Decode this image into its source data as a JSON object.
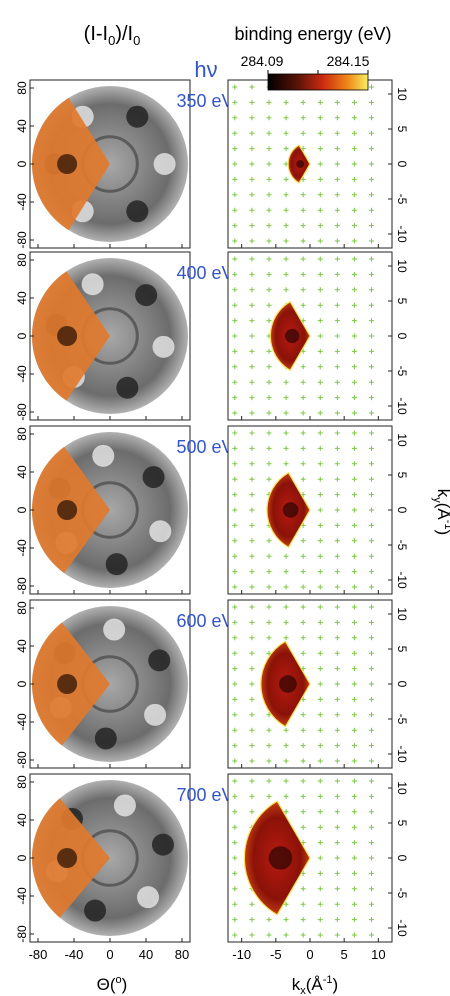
{
  "figure": {
    "left_title": "(I-I0)/I0",
    "right_title": "binding energy (eV)",
    "hv_label": "hν",
    "colorbar_min": "284.09",
    "colorbar_max": "284.15",
    "left_xlabel": "Θ(°)",
    "right_xlabel": "kx(Å-1)",
    "right_ylabel": "ky(Å-1)",
    "energy_color": "#3355cc",
    "overlay_color": "#e07a2e"
  },
  "chart_data": {
    "type": "photoemission-holography-panels",
    "energies": [
      "350 eV",
      "400 eV",
      "500 eV",
      "600 eV",
      "700 eV"
    ],
    "left_panels": {
      "xlabel": "Θ(°)",
      "x_ticks": [
        "-80",
        "-40",
        "0",
        "40",
        "80"
      ],
      "y_ticks": [
        "80",
        "40",
        "0",
        "-40",
        "-80"
      ],
      "xlim": [
        -90,
        90
      ],
      "ylim": [
        -90,
        90
      ]
    },
    "right_panels": {
      "xlabel": "kx(Å-1)",
      "ylabel": "ky(Å-1)",
      "x_ticks": [
        "-10",
        "-5",
        "0",
        "5",
        "10"
      ],
      "y_ticks": [
        "10",
        "5",
        "0",
        "-5",
        "-10"
      ],
      "xlim": [
        -12,
        12
      ],
      "ylim": [
        -12,
        12
      ],
      "colorbar": {
        "label": "binding energy (eV)",
        "min": 284.09,
        "max": 284.15
      },
      "sector_radius_kx": [
        3.2,
        5.8,
        6.3,
        7.2,
        9.6
      ]
    }
  }
}
